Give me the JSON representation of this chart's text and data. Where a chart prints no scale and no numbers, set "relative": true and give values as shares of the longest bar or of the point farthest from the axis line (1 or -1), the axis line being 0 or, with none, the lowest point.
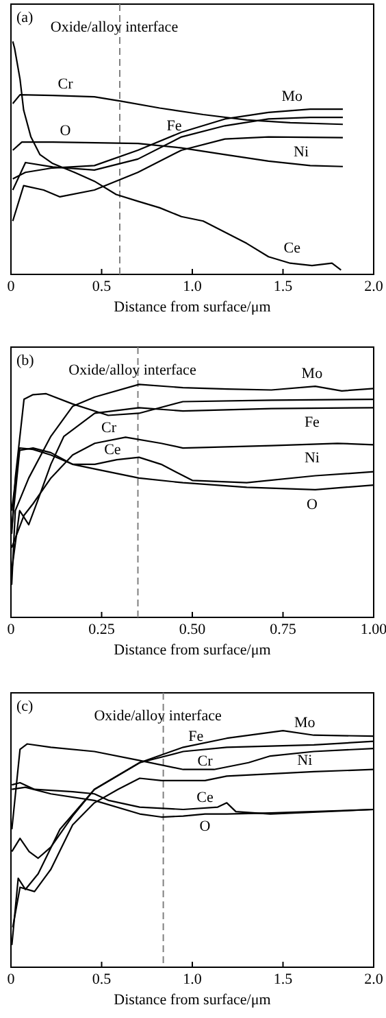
{
  "chart_data": [
    {
      "type": "line",
      "relative": true,
      "tick_labels": "x",
      "xlabel": "Distance from surface/μm",
      "xlim": [
        0,
        2
      ],
      "xticks": [
        0,
        0.5,
        {
          "value": 1,
          "label": "1.0"
        },
        1.5,
        {
          "value": 2,
          "label": "2.0"
        }
      ],
      "annotations": [
        "(a)"
      ],
      "ref_lines": [
        {
          "axis": "x",
          "value": 0.6,
          "label": "Oxide/alloy interface",
          "line_style": "dashed",
          "color": "#808080"
        }
      ],
      "series": [
        {
          "name": "Cr",
          "color": "#000000",
          "x": [
            0.01,
            0.05,
            0.23,
            0.46,
            0.61,
            0.82,
            1.06,
            1.3,
            1.54,
            1.83
          ],
          "values": [
            0.733,
            0.771,
            0.768,
            0.762,
            0.743,
            0.714,
            0.686,
            0.663,
            0.651,
            0.644
          ]
        },
        {
          "name": "Mo",
          "color": "#000000",
          "x": [
            0.01,
            0.08,
            0.23,
            0.46,
            0.7,
            0.94,
            1.18,
            1.42,
            1.65,
            1.83
          ],
          "values": [
            0.41,
            0.438,
            0.457,
            0.467,
            0.533,
            0.61,
            0.667,
            0.695,
            0.709,
            0.709
          ]
        },
        {
          "name": "Fe",
          "color": "#000000",
          "x": [
            0.01,
            0.08,
            0.23,
            0.46,
            0.7,
            0.94,
            1.18,
            1.42,
            1.65,
            1.83
          ],
          "values": [
            0.362,
            0.48,
            0.461,
            0.448,
            0.495,
            0.59,
            0.638,
            0.667,
            0.674,
            0.674
          ]
        },
        {
          "name": "Ni",
          "color": "#000000",
          "x": [
            0.01,
            0.07,
            0.18,
            0.27,
            0.46,
            0.7,
            0.94,
            1.18,
            1.42,
            1.83
          ],
          "values": [
            0.229,
            0.381,
            0.362,
            0.333,
            0.362,
            0.438,
            0.533,
            0.581,
            0.59,
            0.587
          ]
        },
        {
          "name": "O",
          "color": "#000000",
          "x": [
            0.01,
            0.06,
            0.23,
            0.7,
            0.94,
            1.18,
            1.42,
            1.65,
            1.83
          ],
          "values": [
            0.533,
            0.568,
            0.568,
            0.562,
            0.543,
            0.514,
            0.486,
            0.467,
            0.463
          ]
        },
        {
          "name": "Ce",
          "color": "#000000",
          "x": [
            0.01,
            0.02,
            0.05,
            0.07,
            0.11,
            0.16,
            0.23,
            0.35,
            0.46,
            0.58,
            0.7,
            0.82,
            0.94,
            1.06,
            1.18,
            1.3,
            1.42,
            1.54,
            1.66,
            1.77,
            1.82
          ],
          "values": [
            1.0,
            0.971,
            0.838,
            0.705,
            0.59,
            0.514,
            0.476,
            0.438,
            0.4,
            0.343,
            0.314,
            0.286,
            0.248,
            0.229,
            0.181,
            0.133,
            0.076,
            0.048,
            0.038,
            0.048,
            0.019
          ]
        }
      ]
    },
    {
      "type": "line",
      "relative": true,
      "tick_labels": "x",
      "xlabel": "Distance from surface/μm",
      "xlim": [
        0,
        1
      ],
      "xticks": [
        0,
        0.25,
        {
          "value": 0.5,
          "label": "0.50"
        },
        0.75,
        {
          "value": 1,
          "label": "1.00"
        }
      ],
      "annotations": [
        "(b)"
      ],
      "ref_lines": [
        {
          "axis": "x",
          "value": 0.35,
          "label": "Oxide/alloy interface",
          "line_style": "dashed",
          "color": "#808080"
        }
      ],
      "series": [
        {
          "name": "Mo",
          "color": "#000000",
          "x": [
            0.002,
            0.012,
            0.049,
            0.11,
            0.17,
            0.231,
            0.353,
            0.474,
            0.596,
            0.718,
            0.839,
            0.912,
            1.0
          ],
          "values": [
            0.14,
            0.458,
            0.598,
            0.777,
            0.906,
            0.946,
            1.0,
            0.986,
            0.98,
            0.976,
            0.992,
            0.972,
            0.982
          ]
        },
        {
          "name": "Fe",
          "color": "#000000",
          "x": [
            0.002,
            0.024,
            0.049,
            0.073,
            0.11,
            0.146,
            0.231,
            0.353,
            0.474,
            0.718,
            1.0
          ],
          "values": [
            0.199,
            0.458,
            0.398,
            0.498,
            0.657,
            0.777,
            0.876,
            0.9,
            0.886,
            0.896,
            0.9
          ]
        },
        {
          "name": "Cr",
          "color": "#000000",
          "x": [
            0.002,
            0.012,
            0.036,
            0.061,
            0.097,
            0.17,
            0.268,
            0.353,
            0.474,
            0.718,
            1.0
          ],
          "values": [
            0.359,
            0.598,
            0.936,
            0.956,
            0.96,
            0.916,
            0.867,
            0.876,
            0.926,
            0.932,
            0.936
          ]
        },
        {
          "name": "Ni",
          "color": "#000000",
          "x": [
            0.002,
            0.036,
            0.061,
            0.11,
            0.17,
            0.231,
            0.316,
            0.414,
            0.474,
            0.718,
            0.9,
            1.0
          ],
          "values": [
            0.299,
            0.438,
            0.488,
            0.598,
            0.697,
            0.747,
            0.773,
            0.747,
            0.727,
            0.737,
            0.747,
            0.741
          ]
        },
        {
          "name": "Ce",
          "color": "#000000",
          "x": [
            0.002,
            0.024,
            0.061,
            0.11,
            0.17,
            0.231,
            0.292,
            0.353,
            0.414,
            0.5,
            0.65,
            0.839,
            1.0
          ],
          "values": [
            0.378,
            0.717,
            0.727,
            0.707,
            0.657,
            0.657,
            0.677,
            0.687,
            0.657,
            0.588,
            0.578,
            0.608,
            0.625
          ]
        },
        {
          "name": "O",
          "color": "#000000",
          "x": [
            0.002,
            0.024,
            0.061,
            0.11,
            0.17,
            0.231,
            0.353,
            0.474,
            0.65,
            0.839,
            1.0
          ],
          "values": [
            0.458,
            0.727,
            0.721,
            0.697,
            0.657,
            0.637,
            0.598,
            0.578,
            0.558,
            0.548,
            0.568
          ]
        }
      ]
    },
    {
      "type": "line",
      "relative": true,
      "tick_labels": "x",
      "xlabel": "Distance from surface/μm",
      "xlim": [
        0,
        2
      ],
      "xticks": [
        0,
        0.5,
        {
          "value": 1,
          "label": "1.0"
        },
        1.5,
        {
          "value": 2,
          "label": "2.0"
        }
      ],
      "annotations": [
        "(c)"
      ],
      "ref_lines": [
        {
          "axis": "x",
          "value": 0.84,
          "label": "Oxide/alloy interface",
          "line_style": "dashed",
          "color": "#808080"
        }
      ],
      "series": [
        {
          "name": "Mo",
          "color": "#000000",
          "x": [
            0.005,
            0.05,
            0.1,
            0.15,
            0.22,
            0.34,
            0.46,
            0.71,
            0.95,
            1.19,
            1.5,
            1.67,
            2.0
          ],
          "values": [
            0.489,
            0.545,
            0.489,
            0.461,
            0.508,
            0.639,
            0.752,
            0.865,
            0.93,
            0.968,
            1.0,
            0.981,
            0.977
          ]
        },
        {
          "name": "Fe",
          "color": "#000000",
          "x": [
            0.005,
            0.04,
            0.08,
            0.15,
            0.27,
            0.46,
            0.71,
            0.95,
            1.19,
            1.67,
            2.0
          ],
          "values": [
            0.094,
            0.376,
            0.329,
            0.395,
            0.583,
            0.752,
            0.865,
            0.912,
            0.93,
            0.94,
            0.955
          ]
        },
        {
          "name": "Cr",
          "color": "#000000",
          "x": [
            0.005,
            0.05,
            0.09,
            0.22,
            0.46,
            0.71,
            0.95,
            1.12,
            1.31,
            1.43,
            1.67,
            2.0
          ],
          "values": [
            0.583,
            0.921,
            0.944,
            0.93,
            0.912,
            0.874,
            0.836,
            0.836,
            0.865,
            0.893,
            0.912,
            0.925
          ]
        },
        {
          "name": "Ni",
          "color": "#000000",
          "x": [
            0.01,
            0.05,
            0.13,
            0.22,
            0.34,
            0.46,
            0.59,
            0.71,
            0.83,
            1.07,
            1.19,
            1.67,
            2.0
          ],
          "values": [
            0.169,
            0.338,
            0.32,
            0.414,
            0.602,
            0.695,
            0.752,
            0.799,
            0.789,
            0.789,
            0.808,
            0.827,
            0.836
          ]
        },
        {
          "name": "Ce",
          "color": "#000000",
          "x": [
            0.005,
            0.05,
            0.13,
            0.34,
            0.46,
            0.54,
            0.71,
            0.95,
            1.14,
            1.19,
            1.24,
            1.43,
            2.0
          ],
          "values": [
            0.771,
            0.78,
            0.752,
            0.742,
            0.733,
            0.705,
            0.677,
            0.667,
            0.677,
            0.695,
            0.658,
            0.648,
            0.667
          ]
        },
        {
          "name": "O",
          "color": "#000000",
          "x": [
            0.005,
            0.08,
            0.22,
            0.46,
            0.71,
            0.83,
            0.95,
            1.07,
            1.19,
            1.43,
            2.0
          ],
          "values": [
            0.752,
            0.761,
            0.733,
            0.705,
            0.648,
            0.635,
            0.639,
            0.648,
            0.648,
            0.652,
            0.667
          ]
        }
      ]
    }
  ]
}
